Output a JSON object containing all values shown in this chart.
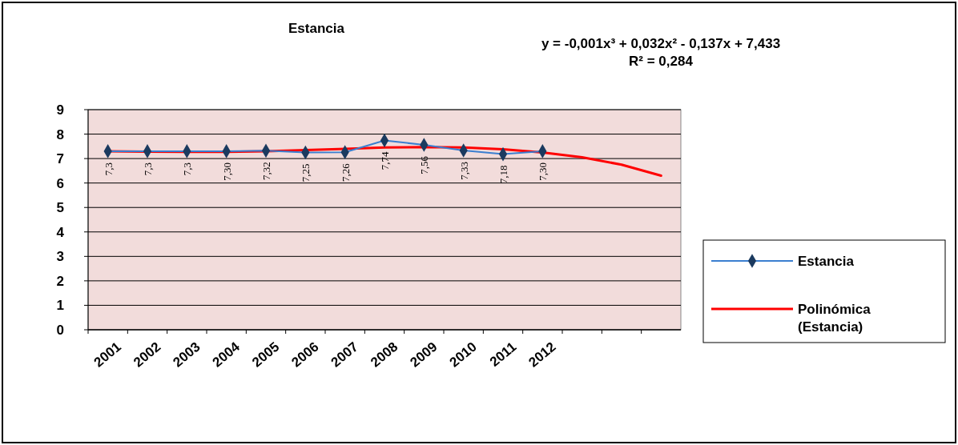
{
  "chart_data": {
    "type": "line",
    "title": "Estancia",
    "annotations": [
      "y = -0,001x³  + 0,032x²  - 0,137x  + 7,433",
      "R² = 0,284"
    ],
    "categories": [
      "2001",
      "2002",
      "2003",
      "2004",
      "2005",
      "2006",
      "2007",
      "2008",
      "2009",
      "2010",
      "2011",
      "2012",
      null,
      null,
      null
    ],
    "series": [
      {
        "name": "Estancia",
        "color": "#3b7fd0",
        "marker": "diamond",
        "values": [
          7.3,
          7.3,
          7.3,
          7.3,
          7.32,
          7.25,
          7.26,
          7.74,
          7.56,
          7.33,
          7.18,
          7.3,
          null,
          null,
          null
        ],
        "value_labels": [
          "7,3",
          "7,3",
          "7,3",
          "7,30",
          "7,32",
          "7,25",
          "7,26",
          "7,74",
          "7,56",
          "7,33",
          "7,18",
          "7,30",
          null,
          null,
          null
        ]
      },
      {
        "name": "Polinómica (Estancia)",
        "color": "#ff0000",
        "marker": "none",
        "values": [
          7.3,
          7.28,
          7.27,
          7.27,
          7.3,
          7.35,
          7.4,
          7.45,
          7.47,
          7.45,
          7.38,
          7.25,
          7.05,
          6.75,
          6.3
        ]
      }
    ],
    "ylim": [
      0,
      9
    ],
    "yticks": [
      0,
      1,
      2,
      3,
      4,
      5,
      6,
      7,
      8,
      9
    ],
    "grid": "y",
    "legend": "right"
  }
}
